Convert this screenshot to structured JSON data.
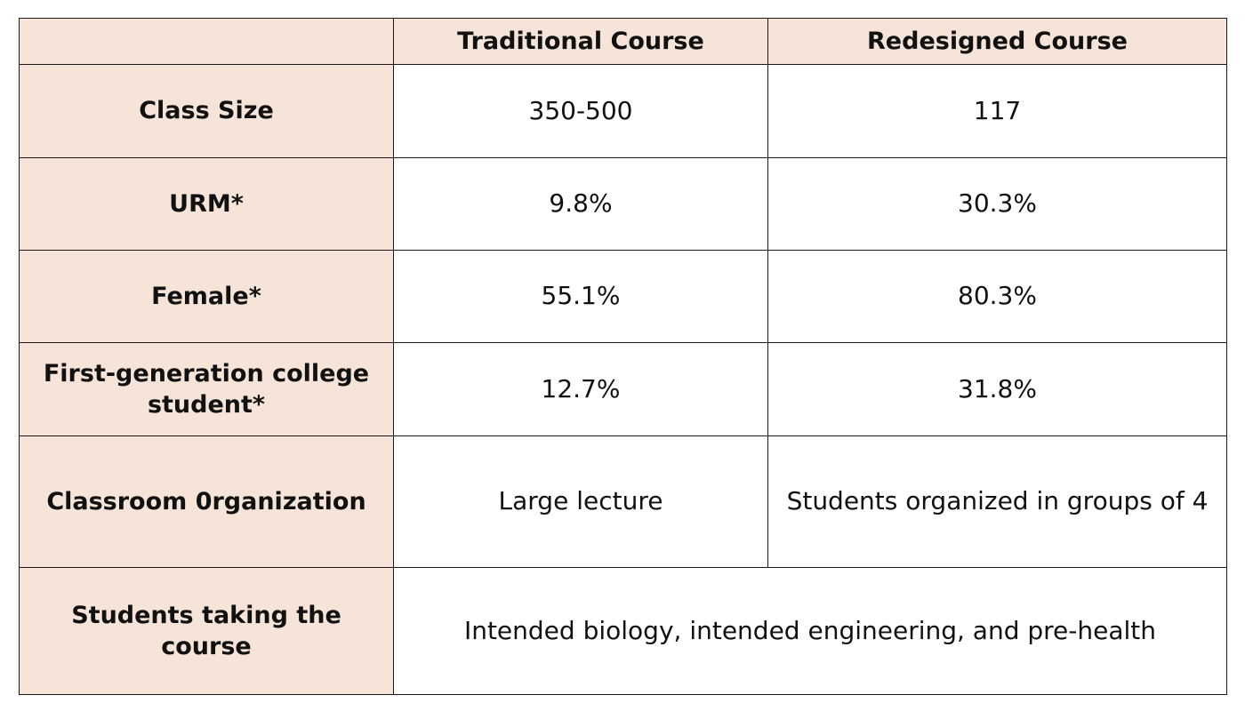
{
  "table": {
    "headers": {
      "corner": "",
      "traditional": "Traditional Course",
      "redesigned": "Redesigned Course"
    },
    "rows": [
      {
        "label": "Class Size",
        "traditional": "350-500",
        "redesigned": "117"
      },
      {
        "label": "URM*",
        "traditional": "9.8%",
        "redesigned": "30.3%"
      },
      {
        "label": "Female*",
        "traditional": "55.1%",
        "redesigned": "80.3%"
      },
      {
        "label": "First-generation college student*",
        "traditional": "12.7%",
        "redesigned": "31.8%"
      },
      {
        "label": "Classroom 0rganization",
        "traditional": "Large lecture",
        "redesigned": "Students organized in groups of 4"
      }
    ],
    "merged_row": {
      "label": "Students taking the course",
      "value": "Intended biology, intended engineering, and pre-health"
    }
  },
  "colors": {
    "header_fill": "#f5e4d7",
    "border": "#1a1a1a"
  }
}
